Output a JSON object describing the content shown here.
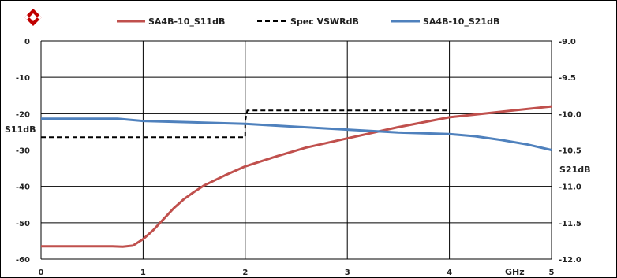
{
  "chart_data": {
    "type": "line",
    "title": "",
    "xlabel": "GHz",
    "ylabel_left": "S11dB",
    "ylabel_right": "S21dB",
    "xlim": [
      0,
      5
    ],
    "ylim_left": [
      -60,
      0
    ],
    "ylim_right": [
      -12.0,
      -9.0
    ],
    "x_ticks": [
      "0",
      "1",
      "2",
      "3",
      "4",
      "5"
    ],
    "y_left_ticks": [
      "0",
      "-10",
      "-20",
      "-30",
      "-40",
      "-50",
      "-60"
    ],
    "y_right_ticks": [
      "-9.0",
      "-9.5",
      "-10.0",
      "-10.5",
      "-11.0",
      "-11.5",
      "-12.0"
    ],
    "grid": true,
    "legend_position": "top",
    "series": [
      {
        "name": "SA4B-10_S11dB",
        "axis": "left",
        "color": "#c0504d",
        "style": "solid",
        "x": [
          0,
          0.5,
          0.7,
          0.8,
          0.9,
          1.0,
          1.1,
          1.2,
          1.3,
          1.4,
          1.5,
          1.6,
          1.8,
          2.0,
          2.3,
          2.6,
          3.0,
          3.5,
          4.0,
          4.5,
          5.0
        ],
        "y": [
          -56.5,
          -56.5,
          -56.5,
          -56.6,
          -56.3,
          -54.5,
          -52.0,
          -49.0,
          -46.0,
          -43.5,
          -41.5,
          -39.7,
          -37.0,
          -34.5,
          -31.8,
          -29.3,
          -26.8,
          -23.7,
          -21.0,
          -19.5,
          -18.0
        ]
      },
      {
        "name": "Spec VSWRdB",
        "axis": "left",
        "color": "#000000",
        "style": "dashed",
        "x": [
          0,
          2.0,
          2.0,
          2.02,
          4.0
        ],
        "y": [
          -26.5,
          -26.5,
          -22.0,
          -19.1,
          -19.1
        ]
      },
      {
        "name": "SA4B-10_S21dB",
        "axis": "right",
        "color": "#4f81bd",
        "style": "solid",
        "x": [
          0,
          0.5,
          0.75,
          1.0,
          1.5,
          2.0,
          2.5,
          3.0,
          3.5,
          4.0,
          4.25,
          4.5,
          4.75,
          5.0
        ],
        "y": [
          -10.07,
          -10.07,
          -10.07,
          -10.1,
          -10.12,
          -10.14,
          -10.18,
          -10.22,
          -10.26,
          -10.28,
          -10.31,
          -10.36,
          -10.42,
          -10.5
        ]
      }
    ]
  }
}
